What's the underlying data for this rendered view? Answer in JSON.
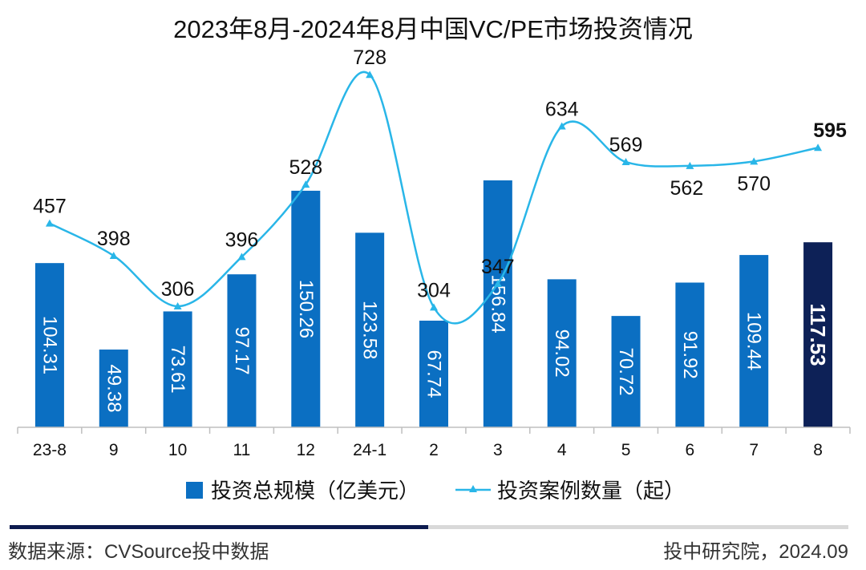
{
  "chart_data": {
    "type": "bar",
    "title": "2023年8月-2024年8月中国VC/PE市场投资情况",
    "categories": [
      "23-8",
      "9",
      "10",
      "11",
      "12",
      "24-1",
      "2",
      "3",
      "4",
      "5",
      "6",
      "7",
      "8"
    ],
    "series": [
      {
        "name": "投资总规模（亿美元）",
        "type": "bar",
        "values": [
          104.31,
          49.38,
          73.61,
          97.17,
          150.26,
          123.58,
          67.74,
          156.84,
          94.02,
          70.72,
          91.92,
          109.44,
          117.53
        ],
        "labels": [
          "104.31",
          "49.38",
          "73.61",
          "97.17",
          "150.26",
          "123.58",
          "67.74",
          "156.84",
          "94.02",
          "70.72",
          "91.92",
          "109.44",
          "117.53"
        ],
        "color": "#0b6fc2",
        "highlight_color": "#0d2157"
      },
      {
        "name": "投资案例数量（起）",
        "type": "line",
        "values": [
          457,
          398,
          306,
          396,
          528,
          728,
          304,
          347,
          634,
          569,
          562,
          570,
          595
        ],
        "labels": [
          "457",
          "398",
          "306",
          "396",
          "528",
          "728",
          "304",
          "347",
          "634",
          "569",
          "562",
          "570",
          "595"
        ],
        "color": "#29b6e8"
      }
    ],
    "legend_position": "bottom",
    "grid": false
  },
  "footer": {
    "source": "数据来源：CVSource投中数据",
    "credit": "投中研究院，2024.09",
    "accent_color": "#0d1b4f",
    "rule_color": "#d9d9d9"
  }
}
